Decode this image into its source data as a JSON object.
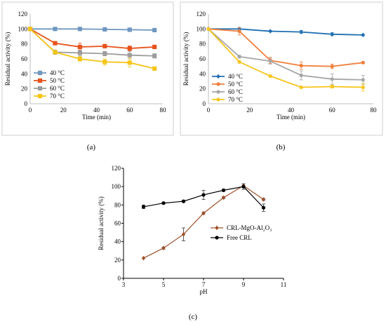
{
  "chart_data": [
    {
      "panel_label": "(a)",
      "type": "line",
      "xlabel": "Time (min)",
      "ylabel": "Residual activity (%)",
      "xlim": [
        0,
        80
      ],
      "ylim": [
        0,
        120
      ],
      "xticks": [
        "0",
        "20",
        "40",
        "60",
        "80"
      ],
      "yticks": [
        "0",
        "20",
        "40",
        "60",
        "80",
        "100",
        "120"
      ],
      "grid": false,
      "legend_position": "center-left",
      "x": [
        0,
        15,
        30,
        45,
        60,
        75
      ],
      "series": [
        {
          "name": "40 °C",
          "color": "#6f97c0",
          "marker": "square",
          "values": [
            100,
            100,
            100,
            99.5,
            99,
            98.5
          ],
          "errors": [
            0.5,
            0.5,
            0.5,
            0.5,
            0.5,
            0.5
          ]
        },
        {
          "name": "50 °C",
          "color": "#e8531b",
          "marker": "square",
          "values": [
            100,
            81,
            76,
            77,
            74,
            76
          ],
          "errors": [
            1,
            1.5,
            5,
            2.5,
            3.5,
            1.5
          ]
        },
        {
          "name": "60 °C",
          "color": "#9d9d9d",
          "marker": "square",
          "values": [
            100,
            69,
            68,
            67,
            65,
            64
          ],
          "errors": [
            1,
            3,
            4,
            3,
            5,
            3
          ]
        },
        {
          "name": "70 °C",
          "color": "#f5c518",
          "marker": "square",
          "values": [
            100,
            69,
            60,
            56,
            55,
            47
          ],
          "errors": [
            1,
            2,
            3,
            4,
            6,
            2
          ]
        }
      ]
    },
    {
      "panel_label": "(b)",
      "type": "line",
      "xlabel": "Time (min)",
      "ylabel": "Residual activity (%)",
      "xlim": [
        0,
        80
      ],
      "ylim": [
        0,
        120
      ],
      "xticks": [
        "0",
        "20",
        "40",
        "60",
        "80"
      ],
      "yticks": [
        "0",
        "20",
        "40",
        "60",
        "80",
        "100",
        "120"
      ],
      "grid": false,
      "legend_position": "center-left",
      "x": [
        0,
        15,
        30,
        45,
        60,
        75
      ],
      "series": [
        {
          "name": "40 °C",
          "color": "#1f6fb4",
          "marker": "diamond",
          "values": [
            100,
            100,
            97,
            96,
            93,
            92
          ],
          "errors": [
            1,
            2,
            1,
            2,
            2,
            1
          ]
        },
        {
          "name": "50 °C",
          "color": "#f07f3c",
          "marker": "circle",
          "values": [
            100,
            97,
            58,
            51,
            50,
            55
          ],
          "errors": [
            1,
            5,
            4,
            5,
            3,
            1
          ]
        },
        {
          "name": "60 °C",
          "color": "#a6a6a6",
          "marker": "circle",
          "values": [
            100,
            63,
            57,
            38,
            33,
            32
          ],
          "errors": [
            1,
            2,
            4,
            6,
            7,
            6
          ]
        },
        {
          "name": "70 °C",
          "color": "#f7c51d",
          "marker": "circle",
          "values": [
            100,
            56,
            37,
            22,
            23,
            22
          ],
          "errors": [
            1,
            1,
            1,
            1,
            2,
            5
          ]
        }
      ]
    },
    {
      "panel_label": "(c)",
      "type": "line",
      "xlabel": "pH",
      "ylabel": "Residual activity (%)",
      "xlim": [
        3,
        11
      ],
      "ylim": [
        0,
        120
      ],
      "xticks": [
        "3",
        "5",
        "7",
        "9",
        "11"
      ],
      "yticks": [
        "0",
        "20",
        "40",
        "60",
        "80",
        "100",
        "120"
      ],
      "grid": false,
      "legend_position": "center-right",
      "series": [
        {
          "name": "CRL-MgO-Al₂O₃",
          "color": "#a0522d",
          "marker": "diamond",
          "x": [
            4,
            5,
            6,
            7,
            8,
            9,
            10
          ],
          "values": [
            22,
            33,
            48,
            71,
            88,
            101,
            86
          ],
          "errors": [
            0.5,
            1,
            7,
            1,
            1,
            2,
            1
          ]
        },
        {
          "name": "Free CRL",
          "color": "#000000",
          "marker": "circle",
          "x": [
            4,
            5,
            6,
            7,
            8,
            9,
            10
          ],
          "values": [
            78,
            82,
            84,
            91,
            96,
            100,
            77
          ],
          "errors": [
            2,
            1,
            1,
            5,
            1,
            3,
            4
          ]
        }
      ]
    }
  ]
}
